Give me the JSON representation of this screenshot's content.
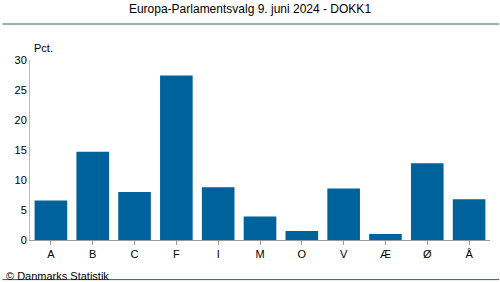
{
  "chart_data": {
    "type": "bar",
    "title": "Europa-Parlamentsvalg 9. juni 2024 - DOKK1",
    "ylabel": "Pct.",
    "annotations": [
      "© Danmarks Statistik"
    ],
    "categories": [
      "A",
      "B",
      "C",
      "F",
      "I",
      "M",
      "O",
      "V",
      "Æ",
      "Ø",
      "Å"
    ],
    "values": [
      6.6,
      14.7,
      8.0,
      27.4,
      8.8,
      3.9,
      1.5,
      8.6,
      1.0,
      12.8,
      6.8
    ],
    "color": "#00629b",
    "ylim": [
      0,
      30
    ],
    "yticks": [
      0,
      5,
      10,
      15,
      20,
      25,
      30
    ],
    "grid": false
  }
}
